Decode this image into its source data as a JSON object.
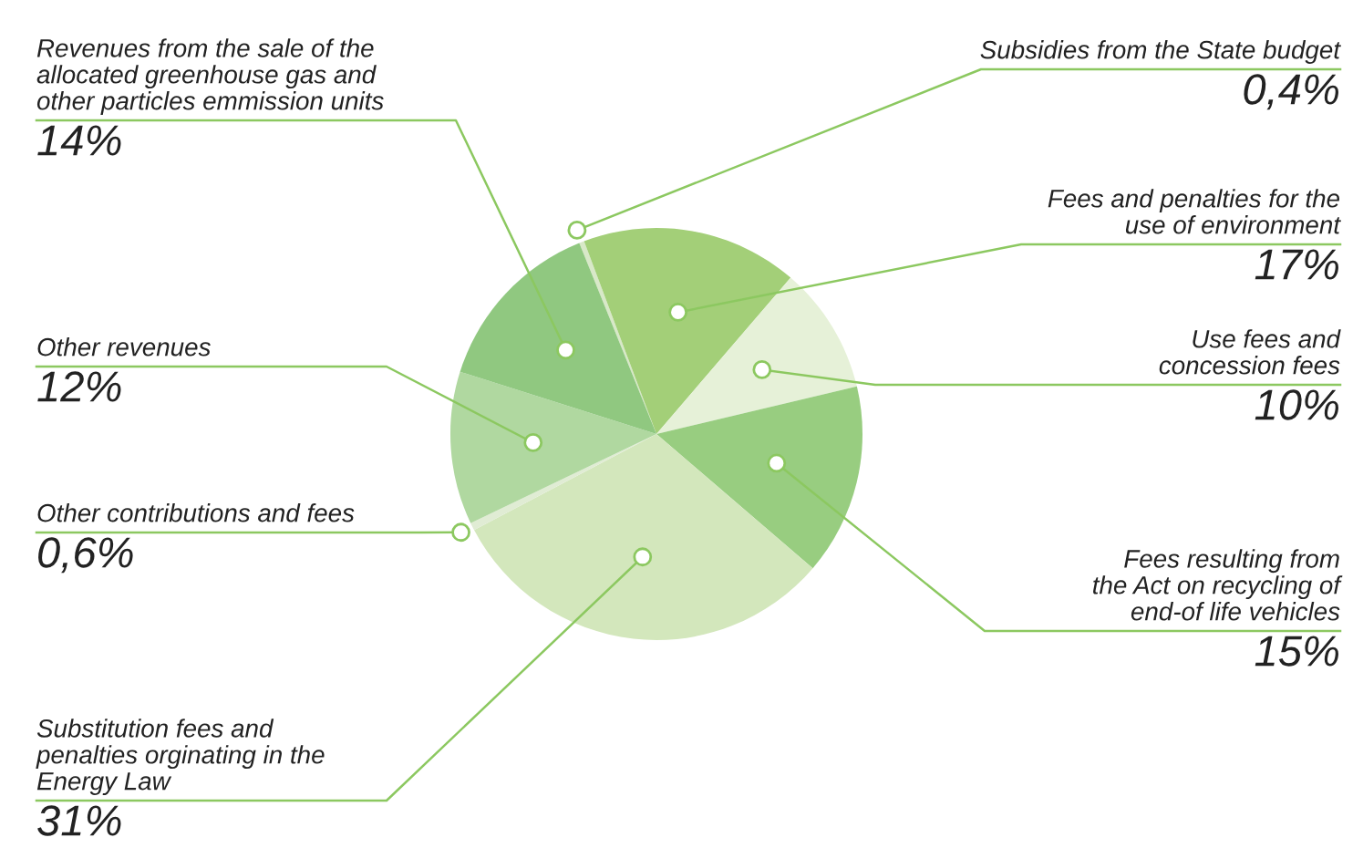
{
  "chart_data": {
    "type": "pie",
    "categories": [
      "Subsidies from the State budget",
      "Fees and penalties for the\nuse of environment",
      "Use fees and\nconcession fees",
      "Fees resulting from\nthe Act on recycling of\nend-of life vehicles",
      "Substitution fees and\npenalties orginating in the\nEnergy Law",
      "Other contributions and fees",
      "Other revenues",
      "Revenues from the sale of the\nallocated greenhouse gas and\nother particles emmission units"
    ],
    "values": [
      0.4,
      17,
      10,
      15,
      31,
      0.6,
      12,
      14
    ],
    "value_labels": [
      "0,4%",
      "17%",
      "10%",
      "15%",
      "31%",
      "0,6%",
      "12%",
      "14%"
    ],
    "colors": [
      "#d8e8c8",
      "#a3cf78",
      "#e6f1d8",
      "#98cd80",
      "#d3e7bc",
      "#e0ecd4",
      "#b0d8a0",
      "#90c880"
    ]
  }
}
